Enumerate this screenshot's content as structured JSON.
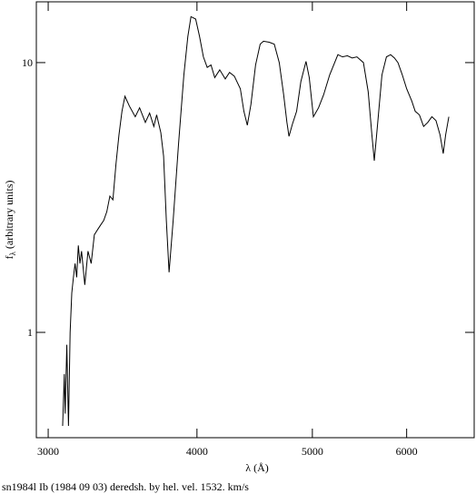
{
  "chart_data": {
    "type": "line",
    "xlabel": "λ (Å)",
    "ylabel": [
      "f",
      "λ",
      " (arbitrary units)"
    ],
    "caption": "sn1984l Ib (1984 09 03) deredsh. by hel. vel.  1532. km/s",
    "xlog": true,
    "ylog": true,
    "xlim": [
      2932,
      6837
    ],
    "ylim": [
      0.407,
      16.8
    ],
    "xticks": [
      3000,
      4000,
      5000,
      6000
    ],
    "yticks": [
      1,
      10
    ],
    "color": "#000000",
    "x": [
      3085,
      3095,
      3100,
      3110,
      3120,
      3130,
      3140,
      3150,
      3160,
      3170,
      3180,
      3190,
      3200,
      3220,
      3240,
      3260,
      3280,
      3300,
      3320,
      3340,
      3360,
      3380,
      3400,
      3420,
      3440,
      3460,
      3480,
      3510,
      3550,
      3580,
      3620,
      3650,
      3680,
      3700,
      3730,
      3750,
      3770,
      3790,
      3820,
      3860,
      3900,
      3930,
      3954,
      3990,
      4020,
      4050,
      4080,
      4110,
      4140,
      4180,
      4225,
      4260,
      4300,
      4350,
      4380,
      4409,
      4440,
      4480,
      4520,
      4549,
      4600,
      4645,
      4690,
      4730,
      4760,
      4779,
      4810,
      4850,
      4890,
      4939,
      4970,
      5010,
      5060,
      5110,
      5170,
      5253,
      5300,
      5350,
      5400,
      5450,
      5519,
      5570,
      5610,
      5636,
      5670,
      5720,
      5770,
      5817,
      5860,
      5900,
      5950,
      6000,
      6060,
      6100,
      6150,
      6200,
      6250,
      6300,
      6350,
      6400,
      6440,
      6470,
      6510
    ],
    "values": [
      0.45,
      0.7,
      0.5,
      0.9,
      0.45,
      1.0,
      1.4,
      1.6,
      1.8,
      1.6,
      2.1,
      1.8,
      2.0,
      1.5,
      2.0,
      1.8,
      2.3,
      2.4,
      2.5,
      2.6,
      2.8,
      3.2,
      3.1,
      4.2,
      5.4,
      6.6,
      7.5,
      6.9,
      6.3,
      6.8,
      6.0,
      6.5,
      5.8,
      6.4,
      5.5,
      4.5,
      2.6,
      1.67,
      2.6,
      5.0,
      9.0,
      12.5,
      14.8,
      14.5,
      12.5,
      10.5,
      9.6,
      9.8,
      8.8,
      9.4,
      8.7,
      9.2,
      8.9,
      8.0,
      6.6,
      5.86,
      7.0,
      9.8,
      11.7,
      12.0,
      11.9,
      11.7,
      10.0,
      7.6,
      6.0,
      5.33,
      5.9,
      6.6,
      8.5,
      10.1,
      8.8,
      6.3,
      6.8,
      7.6,
      9.0,
      10.7,
      10.5,
      10.6,
      10.4,
      10.5,
      10.0,
      7.8,
      5.4,
      4.33,
      5.8,
      9.0,
      10.5,
      10.7,
      10.4,
      10.0,
      9.0,
      8.0,
      7.2,
      6.6,
      6.4,
      5.8,
      6.0,
      6.3,
      6.1,
      5.4,
      4.6,
      5.4,
      6.3
    ]
  }
}
